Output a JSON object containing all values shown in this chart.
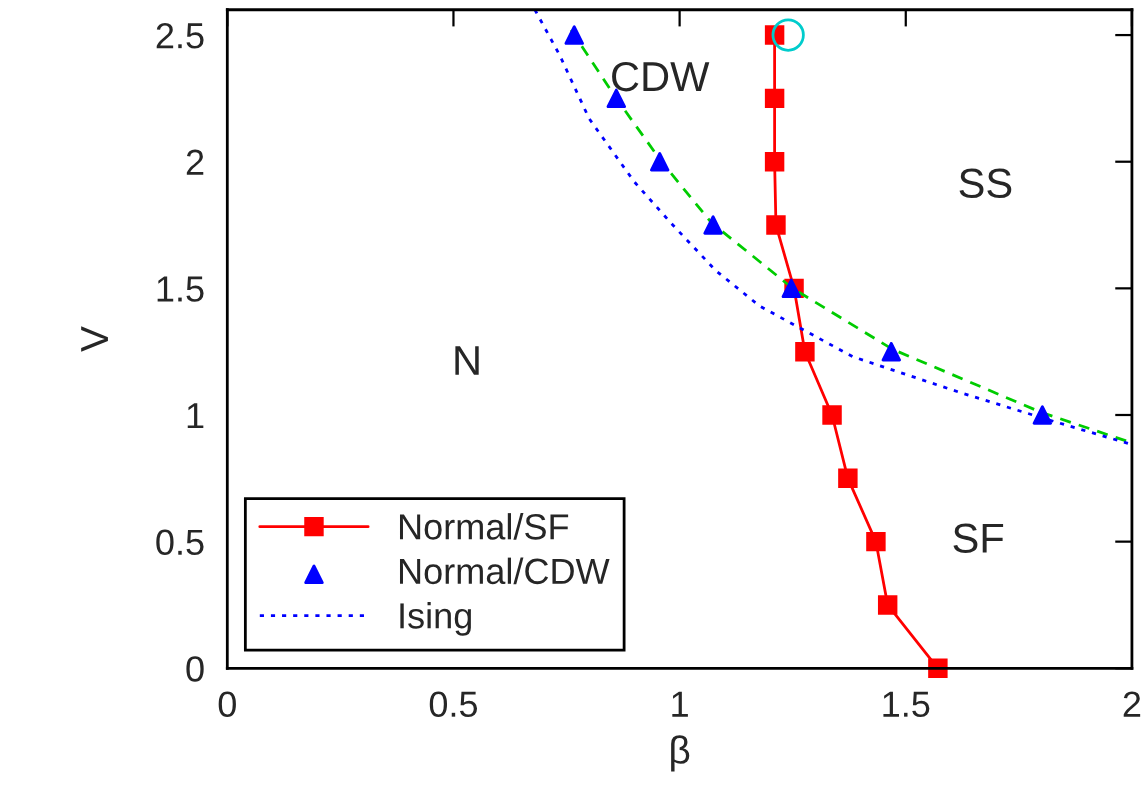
{
  "chart_data": {
    "type": "line",
    "xlabel": "β",
    "ylabel": "V",
    "xlim": [
      0,
      2
    ],
    "ylim": [
      0,
      2.6
    ],
    "xticks": [
      0,
      0.5,
      1,
      1.5,
      2
    ],
    "yticks": [
      0,
      0.5,
      1,
      1.5,
      2,
      2.5
    ],
    "grid": false,
    "legend": "bottom left",
    "series": [
      {
        "name": "Normal/SF",
        "color": "#ff0000",
        "marker": "square",
        "line_style": "solid",
        "x": [
          1.21,
          1.21,
          1.21,
          1.213,
          1.253,
          1.277,
          1.337,
          1.372,
          1.434,
          1.46,
          1.571
        ],
        "values": [
          2.5,
          2.25,
          2.0,
          1.75,
          1.5,
          1.25,
          1.0,
          0.75,
          0.5,
          0.25,
          0
        ]
      },
      {
        "name": "Normal/CDW",
        "type": "scatter",
        "color": "#0000ff",
        "marker": "triangle",
        "x": [
          0.767,
          0.86,
          0.956,
          1.074,
          1.247,
          1.468,
          1.802
        ],
        "values": [
          2.5,
          2.25,
          2.0,
          1.75,
          1.5,
          1.25,
          1.0
        ]
      },
      {
        "color": "#00cc00",
        "marker": "none",
        "line_style": "dashed",
        "x": [
          0.76,
          0.86,
          0.96,
          1.07,
          1.25,
          1.47,
          1.8,
          2.0
        ],
        "values": [
          2.52,
          2.25,
          2.0,
          1.76,
          1.5,
          1.26,
          1.01,
          0.89
        ]
      },
      {
        "name": "Ising",
        "color": "#0000ff",
        "marker": "none",
        "line_style": "dotted",
        "x": [
          0.68,
          0.735,
          0.8,
          0.9,
          0.985,
          1.08,
          1.177,
          1.383,
          1.618,
          1.808,
          1.993
        ],
        "values": [
          2.6,
          2.42,
          2.17,
          1.92,
          1.75,
          1.57,
          1.43,
          1.23,
          1.09,
          0.985,
          0.887
        ]
      },
      {
        "type": "scatter",
        "color": "#00cccc",
        "marker": "circle",
        "x": [
          1.24
        ],
        "values": [
          2.5
        ]
      }
    ],
    "annotations": [
      "CDW",
      "SS",
      "N",
      "SF"
    ]
  }
}
